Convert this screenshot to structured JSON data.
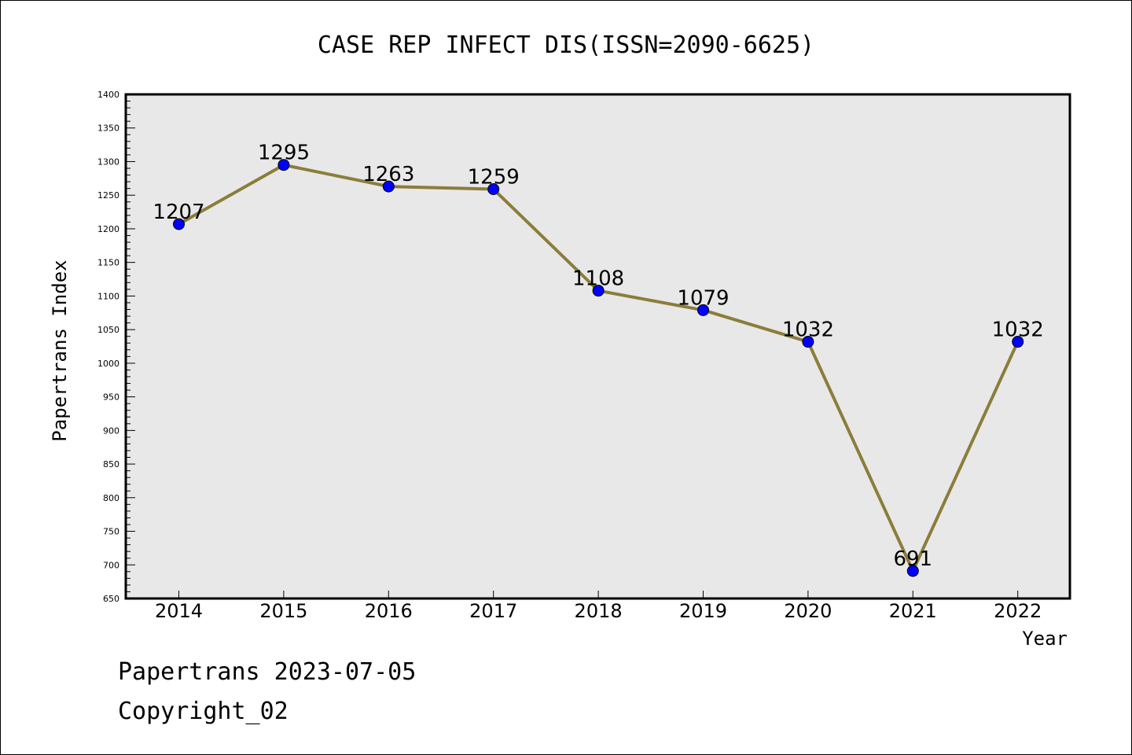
{
  "chart_data": {
    "type": "line",
    "title": "CASE REP INFECT DIS(ISSN=2090-6625)",
    "xlabel": "Year",
    "ylabel": "Papertrans Index",
    "categories": [
      "2014",
      "2015",
      "2016",
      "2017",
      "2018",
      "2019",
      "2020",
      "2021",
      "2022"
    ],
    "values": [
      1207,
      1295,
      1263,
      1259,
      1108,
      1079,
      1032,
      691,
      1032
    ],
    "ylim": [
      650,
      1400
    ],
    "yticks": [
      650,
      700,
      750,
      800,
      850,
      900,
      950,
      1000,
      1050,
      1100,
      1150,
      1200,
      1250,
      1300,
      1350,
      1400
    ],
    "grid": false,
    "colors": {
      "line": "#8b7d3a",
      "marker": "#0000ff",
      "plot_background": "#e8e8e8"
    }
  },
  "footer": {
    "line1": "Papertrans 2023-07-05",
    "line2": "Copyright_02"
  }
}
